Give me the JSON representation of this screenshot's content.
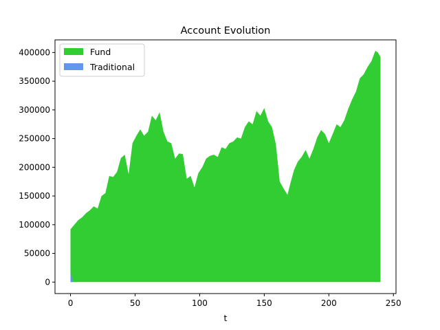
{
  "chart_data": {
    "type": "area",
    "title": "Account Evolution",
    "xlabel": "t",
    "ylabel": "",
    "xlim": [
      -12,
      252
    ],
    "ylim": [
      -20000,
      422000
    ],
    "xticks": [
      0,
      50,
      100,
      150,
      200,
      250
    ],
    "yticks": [
      0,
      50000,
      100000,
      150000,
      200000,
      250000,
      300000,
      350000,
      400000
    ],
    "legend_position": "top-left",
    "grid": false,
    "series": [
      {
        "name": "Fund",
        "color": "#32cd32",
        "x": [
          0,
          3,
          6,
          9,
          12,
          15,
          18,
          21,
          24,
          27,
          30,
          33,
          36,
          39,
          42,
          45,
          48,
          51,
          54,
          57,
          60,
          63,
          66,
          69,
          72,
          75,
          78,
          81,
          84,
          87,
          90,
          93,
          96,
          99,
          102,
          105,
          108,
          111,
          114,
          117,
          120,
          123,
          126,
          129,
          132,
          135,
          138,
          141,
          144,
          147,
          150,
          153,
          156,
          159,
          162,
          165,
          168,
          170,
          173,
          176,
          179,
          182,
          185,
          188,
          191,
          194,
          197,
          200,
          203,
          206,
          209,
          212,
          215,
          218,
          221,
          224,
          227,
          230,
          233,
          236,
          238,
          240
        ],
        "values": [
          92000,
          100000,
          108000,
          113000,
          120000,
          125000,
          132000,
          128000,
          150000,
          155000,
          185000,
          183000,
          192000,
          216000,
          222000,
          188000,
          242000,
          255000,
          266000,
          255000,
          262000,
          290000,
          282000,
          296000,
          262000,
          245000,
          242000,
          215000,
          224000,
          223000,
          180000,
          185000,
          165000,
          190000,
          200000,
          215000,
          220000,
          222000,
          218000,
          235000,
          232000,
          242000,
          245000,
          252000,
          250000,
          270000,
          280000,
          275000,
          298000,
          290000,
          303000,
          280000,
          270000,
          240000,
          175000,
          163000,
          152000,
          170000,
          195000,
          210000,
          218000,
          230000,
          215000,
          232000,
          252000,
          265000,
          258000,
          242000,
          258000,
          275000,
          270000,
          282000,
          302000,
          318000,
          332000,
          355000,
          362000,
          375000,
          385000,
          403000,
          400000,
          392000
        ]
      },
      {
        "name": "Traditional",
        "color": "#6495ed",
        "x": [
          0,
          1,
          2,
          240
        ],
        "values": [
          15000,
          10000,
          0,
          0
        ]
      }
    ]
  }
}
